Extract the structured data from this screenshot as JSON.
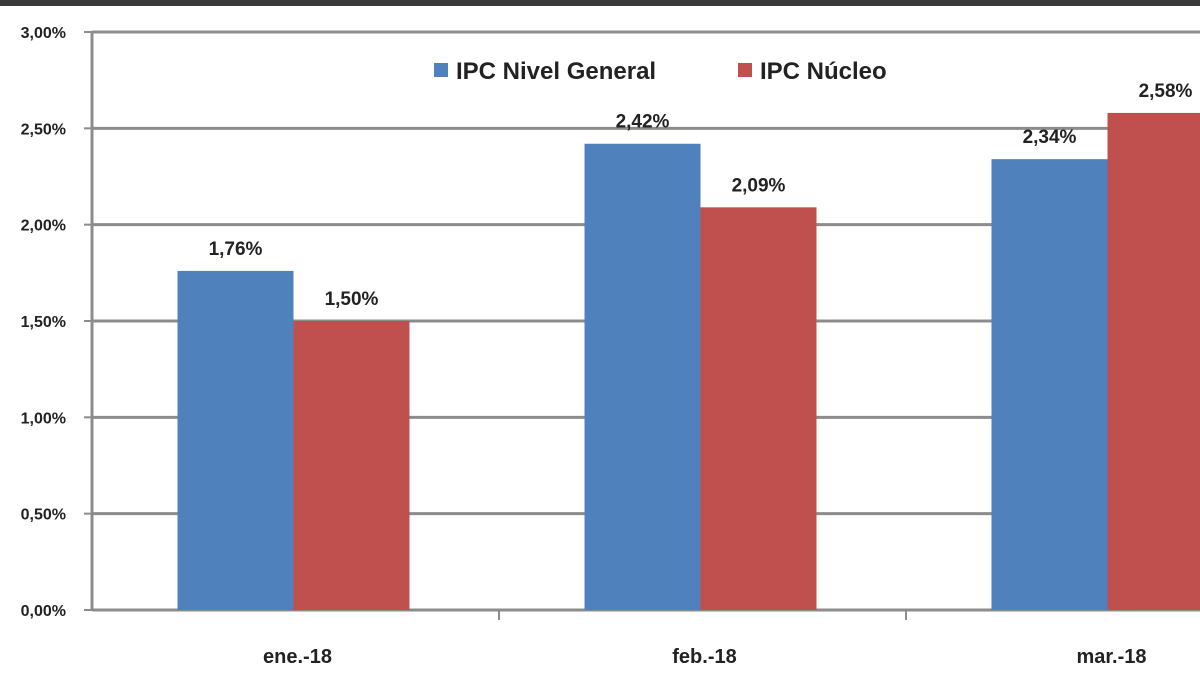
{
  "chart_data": {
    "type": "bar",
    "categories": [
      "ene.-18",
      "feb.-18",
      "mar.-18"
    ],
    "series": [
      {
        "name": "IPC Nivel General",
        "values": [
          1.76,
          2.42,
          2.34
        ],
        "labels": [
          "1,76%",
          "2,42%",
          "2,34%"
        ]
      },
      {
        "name": "IPC Núcleo",
        "values": [
          1.5,
          2.09,
          2.58
        ],
        "labels": [
          "1,50%",
          "2,09%",
          "2,58%"
        ]
      }
    ],
    "y_ticks": [
      0,
      0.5,
      1.0,
      1.5,
      2.0,
      2.5,
      3.0
    ],
    "y_tick_labels": [
      "0,00%",
      "0,50%",
      "1,00%",
      "1,50%",
      "2,00%",
      "2,50%",
      "3,00%"
    ],
    "ylim": [
      0,
      3.0
    ],
    "grid": true,
    "legend_position": "top-center",
    "colors": {
      "IPC Nivel General": "#4f81bd",
      "IPC Núcleo": "#c0504d"
    }
  }
}
